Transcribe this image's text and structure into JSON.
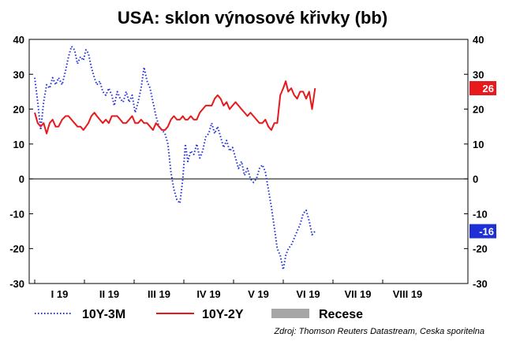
{
  "chart_data": {
    "type": "line",
    "title": "USA: sklon výnosové křivky (bb)",
    "ylim": [
      -30,
      40
    ],
    "y_ticks": [
      40,
      30,
      20,
      10,
      0,
      -10,
      -20,
      -30
    ],
    "x_categories": [
      "I 19",
      "II 19",
      "III 19",
      "IV 19",
      "V 19",
      "VI 19",
      "VII 19",
      "VIII 19"
    ],
    "grid": false,
    "series": [
      {
        "name": "10Y-3M",
        "color": "#1f2fd6",
        "style": "dotted",
        "last_value": "-16",
        "points": [
          [
            0.0,
            29
          ],
          [
            0.06,
            22
          ],
          [
            0.12,
            14
          ],
          [
            0.18,
            22
          ],
          [
            0.24,
            27
          ],
          [
            0.3,
            26
          ],
          [
            0.36,
            29
          ],
          [
            0.42,
            27
          ],
          [
            0.48,
            29
          ],
          [
            0.55,
            27
          ],
          [
            0.62,
            31
          ],
          [
            0.68,
            35
          ],
          [
            0.74,
            38
          ],
          [
            0.8,
            37
          ],
          [
            0.86,
            33
          ],
          [
            0.92,
            35
          ],
          [
            0.98,
            34
          ],
          [
            1.03,
            37
          ],
          [
            1.08,
            36
          ],
          [
            1.14,
            32
          ],
          [
            1.2,
            29
          ],
          [
            1.25,
            27
          ],
          [
            1.31,
            28
          ],
          [
            1.37,
            25
          ],
          [
            1.43,
            24
          ],
          [
            1.49,
            26
          ],
          [
            1.55,
            24
          ],
          [
            1.6,
            21
          ],
          [
            1.66,
            25
          ],
          [
            1.72,
            23
          ],
          [
            1.78,
            22
          ],
          [
            1.84,
            25
          ],
          [
            1.9,
            22
          ],
          [
            1.96,
            24
          ],
          [
            2.02,
            19
          ],
          [
            2.08,
            22
          ],
          [
            2.14,
            26
          ],
          [
            2.2,
            32
          ],
          [
            2.26,
            28
          ],
          [
            2.32,
            26
          ],
          [
            2.38,
            22
          ],
          [
            2.44,
            18
          ],
          [
            2.5,
            15
          ],
          [
            2.56,
            14
          ],
          [
            2.62,
            13
          ],
          [
            2.68,
            10
          ],
          [
            2.74,
            2
          ],
          [
            2.8,
            -3
          ],
          [
            2.86,
            -6
          ],
          [
            2.92,
            -7
          ],
          [
            2.98,
            0
          ],
          [
            3.03,
            10
          ],
          [
            3.08,
            5
          ],
          [
            3.14,
            8
          ],
          [
            3.2,
            7
          ],
          [
            3.26,
            10
          ],
          [
            3.32,
            6
          ],
          [
            3.38,
            8
          ],
          [
            3.44,
            12
          ],
          [
            3.5,
            13
          ],
          [
            3.56,
            16
          ],
          [
            3.62,
            13
          ],
          [
            3.68,
            15
          ],
          [
            3.74,
            12
          ],
          [
            3.8,
            9
          ],
          [
            3.86,
            11
          ],
          [
            3.92,
            8
          ],
          [
            3.98,
            9
          ],
          [
            4.04,
            6
          ],
          [
            4.1,
            3
          ],
          [
            4.16,
            5
          ],
          [
            4.22,
            1
          ],
          [
            4.28,
            3
          ],
          [
            4.34,
            0
          ],
          [
            4.4,
            -1
          ],
          [
            4.46,
            0
          ],
          [
            4.52,
            3
          ],
          [
            4.58,
            4
          ],
          [
            4.64,
            2
          ],
          [
            4.7,
            -3
          ],
          [
            4.76,
            -8
          ],
          [
            4.82,
            -14
          ],
          [
            4.88,
            -20
          ],
          [
            4.94,
            -22
          ],
          [
            5.0,
            -26
          ],
          [
            5.05,
            -22
          ],
          [
            5.1,
            -20
          ],
          [
            5.16,
            -19
          ],
          [
            5.22,
            -17
          ],
          [
            5.28,
            -15
          ],
          [
            5.34,
            -13
          ],
          [
            5.4,
            -10
          ],
          [
            5.46,
            -9
          ],
          [
            5.52,
            -12
          ],
          [
            5.58,
            -16
          ],
          [
            5.64,
            -15
          ]
        ]
      },
      {
        "name": "10Y-2Y",
        "color": "#e8191c",
        "style": "solid",
        "last_value": "26",
        "points": [
          [
            0.0,
            19
          ],
          [
            0.06,
            16
          ],
          [
            0.12,
            15
          ],
          [
            0.18,
            16
          ],
          [
            0.24,
            13
          ],
          [
            0.3,
            16
          ],
          [
            0.36,
            17
          ],
          [
            0.42,
            15
          ],
          [
            0.48,
            15
          ],
          [
            0.55,
            17
          ],
          [
            0.62,
            18
          ],
          [
            0.68,
            18
          ],
          [
            0.74,
            17
          ],
          [
            0.8,
            16
          ],
          [
            0.86,
            15
          ],
          [
            0.92,
            15
          ],
          [
            0.98,
            14
          ],
          [
            1.03,
            15
          ],
          [
            1.08,
            16
          ],
          [
            1.14,
            18
          ],
          [
            1.2,
            19
          ],
          [
            1.25,
            18
          ],
          [
            1.31,
            17
          ],
          [
            1.37,
            16
          ],
          [
            1.43,
            17
          ],
          [
            1.49,
            16
          ],
          [
            1.55,
            18
          ],
          [
            1.6,
            18
          ],
          [
            1.66,
            18
          ],
          [
            1.72,
            17
          ],
          [
            1.78,
            16
          ],
          [
            1.84,
            16
          ],
          [
            1.9,
            17
          ],
          [
            1.96,
            18
          ],
          [
            2.02,
            16
          ],
          [
            2.08,
            16
          ],
          [
            2.14,
            17
          ],
          [
            2.2,
            16
          ],
          [
            2.26,
            16
          ],
          [
            2.32,
            15
          ],
          [
            2.38,
            14
          ],
          [
            2.44,
            16
          ],
          [
            2.5,
            15
          ],
          [
            2.56,
            14
          ],
          [
            2.62,
            14
          ],
          [
            2.68,
            15
          ],
          [
            2.74,
            17
          ],
          [
            2.8,
            18
          ],
          [
            2.86,
            17
          ],
          [
            2.92,
            17
          ],
          [
            2.98,
            18
          ],
          [
            3.03,
            17
          ],
          [
            3.08,
            17
          ],
          [
            3.14,
            18
          ],
          [
            3.2,
            17
          ],
          [
            3.26,
            17
          ],
          [
            3.32,
            19
          ],
          [
            3.38,
            20
          ],
          [
            3.44,
            21
          ],
          [
            3.5,
            21
          ],
          [
            3.56,
            21
          ],
          [
            3.62,
            23
          ],
          [
            3.68,
            24
          ],
          [
            3.74,
            23
          ],
          [
            3.8,
            21
          ],
          [
            3.86,
            22
          ],
          [
            3.92,
            20
          ],
          [
            3.98,
            21
          ],
          [
            4.04,
            22
          ],
          [
            4.1,
            21
          ],
          [
            4.16,
            20
          ],
          [
            4.22,
            19
          ],
          [
            4.28,
            18
          ],
          [
            4.34,
            19
          ],
          [
            4.4,
            18
          ],
          [
            4.46,
            17
          ],
          [
            4.52,
            16
          ],
          [
            4.58,
            16
          ],
          [
            4.64,
            17
          ],
          [
            4.7,
            15
          ],
          [
            4.76,
            14
          ],
          [
            4.82,
            16
          ],
          [
            4.88,
            16
          ],
          [
            4.94,
            24
          ],
          [
            5.0,
            26
          ],
          [
            5.05,
            28
          ],
          [
            5.1,
            25
          ],
          [
            5.16,
            26
          ],
          [
            5.22,
            24
          ],
          [
            5.28,
            23
          ],
          [
            5.34,
            25
          ],
          [
            5.4,
            25
          ],
          [
            5.46,
            23
          ],
          [
            5.52,
            25
          ],
          [
            5.58,
            20
          ],
          [
            5.64,
            26
          ]
        ]
      },
      {
        "name": "Recese",
        "color": "#a6a6a6",
        "style": "area",
        "points": []
      }
    ],
    "source": "Zdroj: Thomson Reuters Datastream, Ceska sporitelna"
  }
}
